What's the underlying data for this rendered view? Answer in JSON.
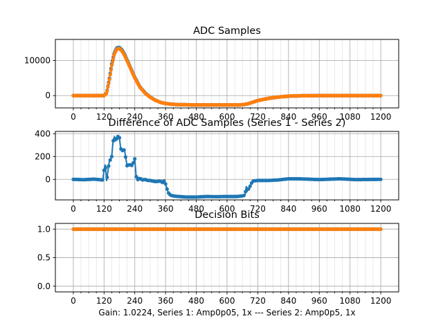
{
  "chart_data": [
    {
      "type": "line",
      "title": "ADC Samples",
      "xlim": [
        -70,
        1270
      ],
      "ylim": [
        -3500,
        16000
      ],
      "xticks": [
        0,
        120,
        240,
        360,
        480,
        600,
        720,
        840,
        960,
        1080,
        1200
      ],
      "xtick_labels": [
        "0",
        "120",
        "240",
        "360",
        "480",
        "600",
        "720",
        "840",
        "960",
        "1080",
        "1200"
      ],
      "yticks": [
        0,
        10000
      ],
      "ytick_labels": [
        "0",
        "10000"
      ],
      "grid": true,
      "series": [
        {
          "color": "#1f77b4",
          "points": [
            [
              0,
              0
            ],
            [
              100,
              0
            ],
            [
              120,
              0
            ],
            [
              130,
              800
            ],
            [
              140,
              4500
            ],
            [
              150,
              9000
            ],
            [
              160,
              12200
            ],
            [
              170,
              13600
            ],
            [
              180,
              13700
            ],
            [
              190,
              13000
            ],
            [
              200,
              11800
            ],
            [
              220,
              8500
            ],
            [
              240,
              5200
            ],
            [
              260,
              2500
            ],
            [
              280,
              800
            ],
            [
              300,
              -400
            ],
            [
              320,
              -1300
            ],
            [
              340,
              -1900
            ],
            [
              360,
              -2250
            ],
            [
              400,
              -2550
            ],
            [
              480,
              -2650
            ],
            [
              560,
              -2650
            ],
            [
              640,
              -2650
            ],
            [
              660,
              -2600
            ],
            [
              680,
              -2350
            ],
            [
              700,
              -1900
            ],
            [
              720,
              -1400
            ],
            [
              760,
              -800
            ],
            [
              800,
              -400
            ],
            [
              840,
              -150
            ],
            [
              880,
              -50
            ],
            [
              960,
              0
            ],
            [
              1200,
              0
            ]
          ]
        },
        {
          "color": "#ff7f0e",
          "points": [
            [
              0,
              0
            ],
            [
              100,
              0
            ],
            [
              120,
              0
            ],
            [
              130,
              700
            ],
            [
              140,
              4200
            ],
            [
              150,
              8600
            ],
            [
              160,
              11800
            ],
            [
              170,
              13300
            ],
            [
              180,
              13400
            ],
            [
              190,
              12700
            ],
            [
              200,
              11500
            ],
            [
              220,
              8300
            ],
            [
              240,
              5000
            ],
            [
              260,
              2400
            ],
            [
              280,
              700
            ],
            [
              300,
              -450
            ],
            [
              320,
              -1300
            ],
            [
              340,
              -1900
            ],
            [
              360,
              -2250
            ],
            [
              400,
              -2550
            ],
            [
              480,
              -2650
            ],
            [
              560,
              -2650
            ],
            [
              640,
              -2650
            ],
            [
              660,
              -2600
            ],
            [
              680,
              -2350
            ],
            [
              700,
              -1900
            ],
            [
              720,
              -1400
            ],
            [
              760,
              -800
            ],
            [
              800,
              -400
            ],
            [
              840,
              -150
            ],
            [
              880,
              -50
            ],
            [
              960,
              0
            ],
            [
              1200,
              0
            ]
          ]
        }
      ]
    },
    {
      "type": "line",
      "title": "Difference of ADC Samples (Series 1 - Series 2)",
      "xlim": [
        -70,
        1270
      ],
      "ylim": [
        -180,
        420
      ],
      "xticks": [
        0,
        120,
        240,
        360,
        480,
        600,
        720,
        840,
        960,
        1080,
        1200
      ],
      "xtick_labels": [
        "0",
        "120",
        "240",
        "360",
        "480",
        "600",
        "720",
        "840",
        "960",
        "1080",
        "1200"
      ],
      "yticks": [
        0,
        200,
        400
      ],
      "ytick_labels": [
        "0",
        "200",
        "400"
      ],
      "grid": true,
      "series": [
        {
          "color": "#1f77b4",
          "points": [
            [
              0,
              0
            ],
            [
              40,
              -3
            ],
            [
              80,
              2
            ],
            [
              115,
              -5
            ],
            [
              120,
              80
            ],
            [
              125,
              130
            ],
            [
              130,
              -15
            ],
            [
              140,
              150
            ],
            [
              150,
              200
            ],
            [
              155,
              330
            ],
            [
              160,
              370
            ],
            [
              165,
              340
            ],
            [
              170,
              360
            ],
            [
              175,
              380
            ],
            [
              180,
              365
            ],
            [
              185,
              270
            ],
            [
              190,
              250
            ],
            [
              200,
              260
            ],
            [
              205,
              180
            ],
            [
              210,
              120
            ],
            [
              220,
              130
            ],
            [
              230,
              120
            ],
            [
              240,
              180
            ],
            [
              245,
              30
            ],
            [
              250,
              -5
            ],
            [
              260,
              10
            ],
            [
              270,
              -5
            ],
            [
              280,
              0
            ],
            [
              290,
              -10
            ],
            [
              300,
              -10
            ],
            [
              320,
              -20
            ],
            [
              340,
              -15
            ],
            [
              350,
              -30
            ],
            [
              355,
              -10
            ],
            [
              360,
              -40
            ],
            [
              370,
              -115
            ],
            [
              380,
              -140
            ],
            [
              400,
              -148
            ],
            [
              440,
              -155
            ],
            [
              480,
              -155
            ],
            [
              520,
              -150
            ],
            [
              560,
              -152
            ],
            [
              600,
              -150
            ],
            [
              640,
              -150
            ],
            [
              660,
              -145
            ],
            [
              670,
              -140
            ],
            [
              675,
              -60
            ],
            [
              680,
              -100
            ],
            [
              690,
              -60
            ],
            [
              700,
              -15
            ],
            [
              720,
              -10
            ],
            [
              760,
              -10
            ],
            [
              800,
              -5
            ],
            [
              840,
              5
            ],
            [
              880,
              5
            ],
            [
              960,
              -2
            ],
            [
              1040,
              5
            ],
            [
              1100,
              -2
            ],
            [
              1200,
              0
            ]
          ]
        }
      ]
    },
    {
      "type": "scatter",
      "title": "Decision Bits",
      "xlim": [
        -70,
        1270
      ],
      "ylim": [
        -0.1,
        1.1
      ],
      "xticks": [
        0,
        120,
        240,
        360,
        480,
        600,
        720,
        840,
        960,
        1080,
        1200
      ],
      "xtick_labels": [
        "0",
        "120",
        "240",
        "360",
        "480",
        "600",
        "720",
        "840",
        "960",
        "1080",
        "1200"
      ],
      "yticks": [
        0.0,
        0.5,
        1.0
      ],
      "ytick_labels": [
        "0.0",
        "0.5",
        "1.0"
      ],
      "xlabel": "Gain: 1.0224, Series 1: Amp0p05, 1x --- Series 2: Amp0p5, 1x",
      "grid": true,
      "series": [
        {
          "color": "#1f77b4",
          "points": [
            [
              0,
              1
            ],
            [
              1200,
              1
            ]
          ]
        },
        {
          "color": "#ff7f0e",
          "points": [
            [
              0,
              1
            ],
            [
              1200,
              1
            ]
          ]
        }
      ]
    }
  ]
}
